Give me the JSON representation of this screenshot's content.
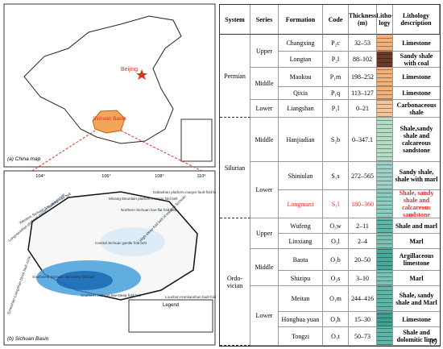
{
  "map_a": {
    "caption": "(a) China map",
    "labels": {
      "capital": "Beijing",
      "basin": "Sichuan Basin"
    }
  },
  "map_b": {
    "caption": "(b) Sichuan Basin",
    "coords": [
      "104°",
      "106°",
      "108°",
      "110°"
    ],
    "legend": "Legend",
    "labels": [
      "Micang Mountain platform margin fold belt",
      "Dabashan platform margin fault-fold belt",
      "Longmenshan platform margin fault-fold belt",
      "Northern Sichuan low-flat fold belt",
      "Western Sichuan low-steep fold belt",
      "Central Sichuan gentle fold belt",
      "High-steep fold belt of eastern Sichuan",
      "Southwest Sichuan low-steep fold belt",
      "Southern Sichuan low-steep fold belt",
      "Emeishan-Liangshan block fault zone",
      "Loushan-Hanlianshan fault-fold belt"
    ]
  },
  "table": {
    "headers": [
      "System",
      "Series",
      "Formation",
      "Code",
      "Thickness (m)",
      "Litho- logy",
      "Lithology description"
    ],
    "panel": "(c)",
    "systems": [
      {
        "name": "Permian",
        "series": [
          {
            "name": "Upper",
            "formations": [
              {
                "formation": "Changxing",
                "code": "P₂c",
                "thickness": "32–53",
                "description": "Limestone",
                "color": "#f0b27a"
              },
              {
                "formation": "Longtan",
                "code": "P₂l",
                "thickness": "88–102",
                "description": "Sandy shale with coal",
                "color": "#6b3b2a"
              }
            ]
          },
          {
            "name": "Middle",
            "formations": [
              {
                "formation": "Maokou",
                "code": "P₁m",
                "thickness": "198–252",
                "description": "Limestone",
                "color": "#f0b27a"
              },
              {
                "formation": "Qixia",
                "code": "P₁q",
                "thickness": "113–127",
                "description": "Limestone",
                "color": "#f0b27a"
              }
            ]
          },
          {
            "name": "Lower",
            "formations": [
              {
                "formation": "Liangshan",
                "code": "P₁l",
                "thickness": "0–21",
                "description": "Carbonaceous shale",
                "color": "#f4c49a"
              }
            ]
          }
        ]
      },
      {
        "name": "Silurian",
        "series": [
          {
            "name": "Middle",
            "formations": [
              {
                "formation": "Hanjiadian",
                "code": "S₂b",
                "thickness": "0–347.1",
                "description": "Shale,sandy shale and calcareous sandstone",
                "color": "#b7dcc4"
              }
            ]
          },
          {
            "name": "Lower",
            "formations": [
              {
                "formation": "Shiniulan",
                "code": "S₁s",
                "thickness": "272–565",
                "description": "Sandy shale, shale with marl",
                "color": "#9fd0c6"
              },
              {
                "formation": "Longmaxi",
                "code": "S₁l",
                "thickness": "180–360",
                "description": "Shale, sandy shale and calcareous sandstone",
                "color": "#8ccbbf",
                "text_color": "#e0302c"
              }
            ]
          }
        ]
      },
      {
        "name": "Ordo- vician",
        "series": [
          {
            "name": "Upper",
            "formations": [
              {
                "formation": "Wufeng",
                "code": "O₃w",
                "thickness": "2–11",
                "description": "Shale and marl",
                "color": "#5fb6a8"
              },
              {
                "formation": "Linxiang",
                "code": "O₃l",
                "thickness": "2–4",
                "description": "Marl",
                "color": "#7cc2b4"
              }
            ]
          },
          {
            "name": "Middle",
            "formations": [
              {
                "formation": "Baota",
                "code": "O₂b",
                "thickness": "20–50",
                "description": "Argillaceous limestone",
                "color": "#4aa89a"
              },
              {
                "formation": "Shizipu",
                "code": "O₂s",
                "thickness": "3–10",
                "description": "Marl",
                "color": "#7cc2b4"
              }
            ]
          },
          {
            "name": "Lower",
            "formations": [
              {
                "formation": "Meitan",
                "code": "O₁m",
                "thickness": "244–416",
                "description": "Shale, sandy shale and Marl",
                "color": "#5fb6a8"
              },
              {
                "formation": "Honghua yuan",
                "code": "O₁h",
                "thickness": "15–30",
                "description": "Limestone",
                "color": "#3f9f92"
              },
              {
                "formation": "Tongzi",
                "code": "O₁t",
                "thickness": "50–73",
                "description": "Shale and dolomitic lime",
                "color": "#5fb6a8"
              }
            ]
          }
        ]
      }
    ]
  }
}
